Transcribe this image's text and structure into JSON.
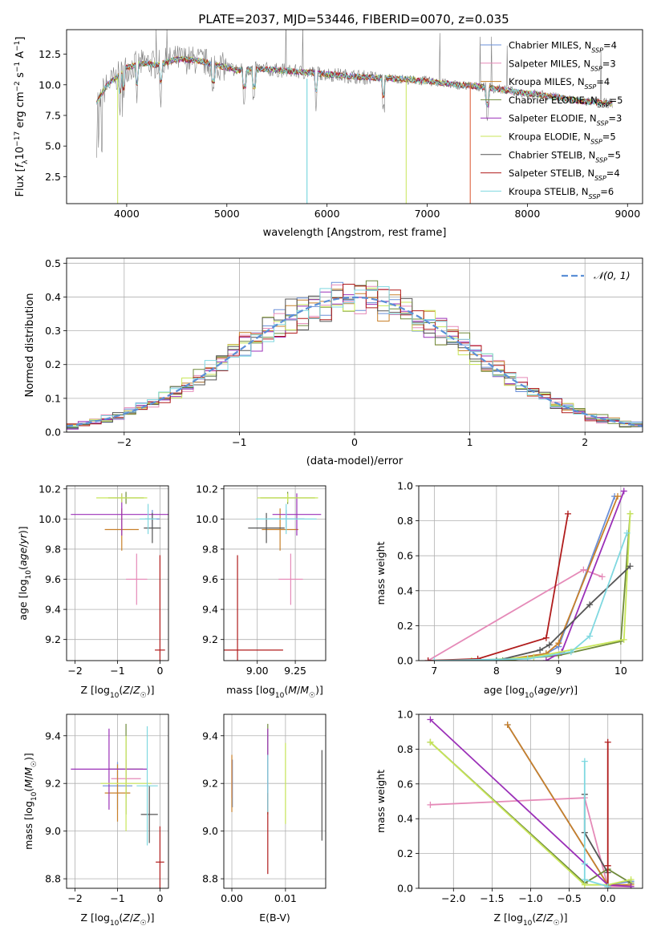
{
  "figure_title": "PLATE=2037, MJD=53446, FIBERID=0070, z=0.035",
  "colors": {
    "Chabrier MILES": "#6a8fd8",
    "Salpeter MILES": "#e58ab8",
    "Kroupa MILES": "#c8802a",
    "Chabrier ELODIE": "#6f8a3a",
    "Salpeter ELODIE": "#9b30b8",
    "Kroupa ELODIE": "#c8e65a",
    "Chabrier STELIB": "#555555",
    "Salpeter STELIB": "#b01c1c",
    "Kroupa STELIB": "#7fd8e0",
    "data": "#808080",
    "normal": "#5b8fd6"
  },
  "chart_data": [
    {
      "id": "spectrum",
      "type": "line",
      "title": "PLATE=2037, MJD=53446, FIBERID=0070, z=0.035",
      "xlabel": "wavelength [Angstrom, rest frame]",
      "ylabel": "Flux [f",
      "ylabel_parts": [
        "Flux [",
        "f",
        "λ",
        "10",
        "−17",
        " erg cm",
        "−2",
        " s",
        "−1",
        " A",
        "−1",
        "]"
      ],
      "xlim": [
        3400,
        9150
      ],
      "ylim": [
        0.3,
        14.5
      ],
      "xticks": [
        4000,
        5000,
        6000,
        7000,
        8000,
        9000
      ],
      "yticks": [
        2.5,
        5.0,
        7.5,
        10.0,
        12.5
      ],
      "ytick_labels": [
        "2.5",
        "5.0",
        "7.5",
        "10.0",
        "12.5"
      ],
      "continuum": {
        "x": [
          3700,
          3750,
          3800,
          3900,
          4000,
          4100,
          4200,
          4300,
          4500,
          4700,
          4900,
          5100,
          5300,
          5500,
          5800,
          6100,
          6400,
          6700,
          7000,
          7300,
          7600,
          7900,
          8200,
          8500,
          8800
        ],
        "y": [
          8.6,
          9.3,
          9.9,
          10.6,
          11.4,
          11.6,
          11.8,
          11.6,
          12.1,
          12.0,
          11.6,
          11.2,
          11.3,
          11.2,
          11.0,
          10.8,
          10.6,
          10.5,
          10.3,
          10.0,
          9.8,
          9.4,
          9.1,
          8.7,
          8.5
        ]
      },
      "series": [
        {
          "name": "Chabrier MILES",
          "sub": "SSP",
          "n": 4
        },
        {
          "name": "Salpeter MILES",
          "sub": "SSP",
          "n": 3
        },
        {
          "name": "Kroupa MILES",
          "sub": "SSP",
          "n": 4
        },
        {
          "name": "Chabrier ELODIE",
          "sub": "SSP",
          "n": 5
        },
        {
          "name": "Salpeter ELODIE",
          "sub": "SSP",
          "n": 3
        },
        {
          "name": "Kroupa ELODIE",
          "sub": "SSP",
          "n": 5
        },
        {
          "name": "Chabrier STELIB",
          "sub": "SSP",
          "n": 5
        },
        {
          "name": "Salpeter STELIB",
          "sub": "SSP",
          "n": 4
        },
        {
          "name": "Kroupa STELIB",
          "sub": "SSP",
          "n": 6
        }
      ],
      "legend_location": "upper-right"
    },
    {
      "id": "residuals",
      "type": "histogram",
      "xlabel": "(data-model)/error",
      "ylabel": "Normed distribution",
      "xlim": [
        -2.5,
        2.5
      ],
      "ylim": [
        0,
        0.515
      ],
      "xticks": [
        -2,
        -1,
        0,
        1,
        2
      ],
      "xtick_labels": [
        "−2",
        "−1",
        "0",
        "1",
        "2"
      ],
      "yticks": [
        0.0,
        0.1,
        0.2,
        0.3,
        0.4,
        0.5
      ],
      "ytick_labels": [
        "0.0",
        "0.1",
        "0.2",
        "0.3",
        "0.4",
        "0.5"
      ],
      "bin_width": 0.1,
      "legend": [
        "𝒩(0, 1)"
      ],
      "grid": true
    },
    {
      "id": "age-vs-Z",
      "type": "errorbar",
      "xlabel": "Z [log10(Z/Z☉)]",
      "ylabel": "age  [log10(age/yr)]",
      "xlim": [
        -2.2,
        0.2
      ],
      "ylim": [
        9.06,
        10.22
      ],
      "xticks": [
        -2,
        -1,
        0
      ],
      "xtick_labels": [
        "−2",
        "−1",
        "0"
      ],
      "yticks": [
        9.2,
        9.4,
        9.6,
        9.8,
        10.0,
        10.2
      ],
      "ytick_labels": [
        "9.2",
        "9.4",
        "9.6",
        "9.8",
        "10.0",
        "10.2"
      ],
      "points": [
        {
          "model": "Chabrier MILES",
          "x": -0.18,
          "xerr": 0.17,
          "y": 10.0,
          "yerr": 0.06
        },
        {
          "model": "Salpeter MILES",
          "x": -0.55,
          "xerr": 0.25,
          "y": 9.6,
          "yerr": 0.17
        },
        {
          "model": "Kroupa MILES",
          "x": -0.9,
          "xerr": 0.4,
          "y": 9.93,
          "yerr": 0.14
        },
        {
          "model": "Chabrier ELODIE",
          "x": -0.8,
          "xerr": 0.42,
          "y": 10.14,
          "yerr": 0.04
        },
        {
          "model": "Salpeter ELODIE",
          "x": -0.9,
          "xerr": 1.2,
          "y": 10.03,
          "yerr": 0.14
        },
        {
          "model": "Kroupa ELODIE",
          "x": -0.9,
          "xerr": 0.6,
          "y": 10.14,
          "yerr": 0.03
        },
        {
          "model": "Chabrier STELIB",
          "x": -0.18,
          "xerr": 0.2,
          "y": 9.94,
          "yerr": 0.1
        },
        {
          "model": "Salpeter STELIB",
          "x": 0.0,
          "xerr": 0.12,
          "y": 9.13,
          "yerr": 0.63
        },
        {
          "model": "Kroupa STELIB",
          "x": -0.28,
          "xerr": 0.2,
          "y": 10.0,
          "yerr": 0.1
        }
      ]
    },
    {
      "id": "age-vs-mass",
      "type": "errorbar",
      "xlabel": "mass [log10(M/M☉)]",
      "ylabel": "",
      "xlim": [
        8.78,
        9.45
      ],
      "ylim": [
        9.06,
        10.22
      ],
      "xticks": [
        9.0,
        9.25
      ],
      "xtick_labels": [
        "9.00",
        "9.25"
      ],
      "yticks": [
        9.2,
        9.4,
        9.6,
        9.8,
        10.0,
        10.2
      ],
      "ytick_labels": [
        "9.2",
        "9.4",
        "9.6",
        "9.8",
        "10.0",
        "10.2"
      ],
      "points": [
        {
          "model": "Chabrier MILES",
          "x": 9.19,
          "xerr": 0.12,
          "y": 10.0,
          "yerr": 0.06
        },
        {
          "model": "Salpeter MILES",
          "x": 9.22,
          "xerr": 0.08,
          "y": 9.6,
          "yerr": 0.17
        },
        {
          "model": "Kroupa MILES",
          "x": 9.15,
          "xerr": 0.12,
          "y": 9.93,
          "yerr": 0.14
        },
        {
          "model": "Chabrier ELODIE",
          "x": 9.2,
          "xerr": 0.18,
          "y": 10.14,
          "yerr": 0.04
        },
        {
          "model": "Salpeter ELODIE",
          "x": 9.26,
          "xerr": 0.16,
          "y": 10.03,
          "yerr": 0.14
        },
        {
          "model": "Kroupa ELODIE",
          "x": 9.2,
          "xerr": 0.2,
          "y": 10.14,
          "yerr": 0.03
        },
        {
          "model": "Chabrier STELIB",
          "x": 9.06,
          "xerr": 0.12,
          "y": 9.94,
          "yerr": 0.1
        },
        {
          "model": "Salpeter STELIB",
          "x": 8.87,
          "xerr": 0.3,
          "y": 9.13,
          "yerr": 0.63
        },
        {
          "model": "Kroupa STELIB",
          "x": 9.19,
          "xerr": 0.2,
          "y": 10.0,
          "yerr": 0.1
        }
      ]
    },
    {
      "id": "massweight-vs-age",
      "type": "line",
      "xlabel": "age  [log10(age/yr)]",
      "ylabel": "mass weight",
      "xlim": [
        6.75,
        10.35
      ],
      "ylim": [
        0,
        1.0
      ],
      "xticks": [
        7,
        8,
        9,
        10
      ],
      "xtick_labels": [
        "7",
        "8",
        "9",
        "10"
      ],
      "yticks": [
        0.0,
        0.2,
        0.4,
        0.6,
        0.8,
        1.0
      ],
      "ytick_labels": [
        "0.0",
        "0.2",
        "0.4",
        "0.6",
        "0.8",
        "1.0"
      ],
      "series": [
        {
          "name": "Chabrier MILES",
          "x": [
            8.2,
            8.8,
            9.0,
            9.9
          ],
          "y": [
            0.0,
            0.04,
            0.08,
            0.94
          ]
        },
        {
          "name": "Salpeter MILES",
          "x": [
            6.9,
            9.4,
            9.7
          ],
          "y": [
            0.0,
            0.52,
            0.48
          ]
        },
        {
          "name": "Kroupa MILES",
          "x": [
            8.0,
            8.8,
            9.0,
            9.95
          ],
          "y": [
            0.0,
            0.04,
            0.1,
            0.94
          ]
        },
        {
          "name": "Chabrier ELODIE",
          "x": [
            8.1,
            9.0,
            10.0,
            10.15
          ],
          "y": [
            0.0,
            0.03,
            0.11,
            0.84
          ]
        },
        {
          "name": "Salpeter ELODIE",
          "x": [
            8.8,
            9.05,
            10.05
          ],
          "y": [
            0.0,
            0.05,
            0.97
          ]
        },
        {
          "name": "Kroupa ELODIE",
          "x": [
            7.6,
            8.6,
            10.05,
            10.15
          ],
          "y": [
            0.0,
            0.02,
            0.12,
            0.84
          ]
        },
        {
          "name": "Chabrier STELIB",
          "x": [
            8.0,
            8.7,
            8.85,
            9.5,
            10.15
          ],
          "y": [
            0.0,
            0.06,
            0.09,
            0.32,
            0.54
          ]
        },
        {
          "name": "Salpeter STELIB",
          "x": [
            6.9,
            7.7,
            8.8,
            9.15
          ],
          "y": [
            0.0,
            0.01,
            0.13,
            0.84
          ]
        },
        {
          "name": "Kroupa STELIB",
          "x": [
            7.0,
            8.5,
            9.2,
            9.5,
            10.1
          ],
          "y": [
            0.0,
            0.01,
            0.05,
            0.14,
            0.73
          ]
        }
      ]
    },
    {
      "id": "mass-vs-Z",
      "type": "errorbar",
      "xlabel": "Z [log10(Z/Z☉)]",
      "ylabel": "mass [log10(M/M☉)]",
      "xlim": [
        -2.2,
        0.2
      ],
      "ylim": [
        8.76,
        9.49
      ],
      "xticks": [
        -2,
        -1,
        0
      ],
      "xtick_labels": [
        "−2",
        "−1",
        "0"
      ],
      "yticks": [
        8.8,
        9.0,
        9.2,
        9.4
      ],
      "ytick_labels": [
        "8.8",
        "9.0",
        "9.2",
        "9.4"
      ],
      "points": [
        {
          "model": "Chabrier MILES",
          "x": -1.0,
          "xerr": 0.35,
          "y": 9.19,
          "yerr": 0.1
        },
        {
          "model": "Salpeter MILES",
          "x": -0.8,
          "xerr": 0.35,
          "y": 9.22,
          "yerr": 0.08
        },
        {
          "model": "Kroupa MILES",
          "x": -1.0,
          "xerr": 0.3,
          "y": 9.16,
          "yerr": 0.12
        },
        {
          "model": "Chabrier ELODIE",
          "x": -0.8,
          "xerr": 0.4,
          "y": 9.26,
          "yerr": 0.19
        },
        {
          "model": "Salpeter ELODIE",
          "x": -1.2,
          "xerr": 0.9,
          "y": 9.26,
          "yerr": 0.17
        },
        {
          "model": "Kroupa ELODIE",
          "x": -0.8,
          "xerr": 0.6,
          "y": 9.2,
          "yerr": 0.2
        },
        {
          "model": "Chabrier STELIB",
          "x": -0.25,
          "xerr": 0.2,
          "y": 9.07,
          "yerr": 0.12
        },
        {
          "model": "Salpeter STELIB",
          "x": 0.0,
          "xerr": 0.1,
          "y": 8.87,
          "yerr": 0.15
        },
        {
          "model": "Kroupa STELIB",
          "x": -0.3,
          "xerr": 0.25,
          "y": 9.19,
          "yerr": 0.25
        }
      ]
    },
    {
      "id": "mass-vs-ebv",
      "type": "errorbar",
      "xlabel": "E(B-V)",
      "ylabel": "",
      "xlim": [
        -0.0015,
        0.0175
      ],
      "ylim": [
        8.76,
        9.49
      ],
      "xticks": [
        0.0,
        0.01
      ],
      "xtick_labels": [
        "0.00",
        "0.01"
      ],
      "yticks": [
        8.8,
        9.0,
        9.2,
        9.4
      ],
      "ytick_labels": [
        "8.8",
        "9.0",
        "9.2",
        "9.4"
      ],
      "points": [
        {
          "model": "Chabrier MILES",
          "x": 0.0001,
          "xerr": 0,
          "y": 9.2,
          "yerr": 0.1
        },
        {
          "model": "Salpeter MILES",
          "x": 0.0,
          "xerr": 0,
          "y": 9.22,
          "yerr": 0.08
        },
        {
          "model": "Kroupa MILES",
          "x": 0.0,
          "xerr": 0,
          "y": 9.2,
          "yerr": 0.12
        },
        {
          "model": "Chabrier ELODIE",
          "x": 0.0067,
          "xerr": 0,
          "y": 9.26,
          "yerr": 0.19
        },
        {
          "model": "Salpeter ELODIE",
          "x": 0.0067,
          "xerr": 0,
          "y": 9.26,
          "yerr": 0.17
        },
        {
          "model": "Kroupa ELODIE",
          "x": 0.01,
          "xerr": 0,
          "y": 9.2,
          "yerr": 0.17
        },
        {
          "model": "Chabrier STELIB",
          "x": 0.0168,
          "xerr": 0,
          "y": 9.15,
          "yerr": 0.19
        },
        {
          "model": "Salpeter STELIB",
          "x": 0.0067,
          "xerr": 0,
          "y": 8.99,
          "yerr": 0.17
        },
        {
          "model": "Kroupa STELIB",
          "x": 0.0067,
          "xerr": 0,
          "y": 9.2,
          "yerr": 0.12
        }
      ]
    },
    {
      "id": "massweight-vs-Z",
      "type": "line",
      "xlabel": "Z [log10(Z/Z☉)]",
      "ylabel": "mass weight",
      "xlim": [
        -2.45,
        0.45
      ],
      "ylim": [
        0,
        1.0
      ],
      "xticks": [
        -2.0,
        -1.5,
        -1.0,
        -0.5,
        0.0
      ],
      "xtick_labels": [
        "−2.0",
        "−1.5",
        "−1.0",
        "−0.5",
        "0.0"
      ],
      "yticks": [
        0.0,
        0.2,
        0.4,
        0.6,
        0.8,
        1.0
      ],
      "ytick_labels": [
        "0.0",
        "0.2",
        "0.4",
        "0.6",
        "0.8",
        "1.0"
      ],
      "series": [
        {
          "name": "Chabrier MILES",
          "x": [
            -1.3,
            0.0,
            0.3
          ],
          "y": [
            0.94,
            0.02,
            0.04
          ]
        },
        {
          "name": "Salpeter MILES",
          "x": [
            -2.3,
            -0.3,
            0.0,
            0.3
          ],
          "y": [
            0.48,
            0.52,
            0.01,
            0.01
          ]
        },
        {
          "name": "Kroupa MILES",
          "x": [
            -1.3,
            0.0,
            0.3
          ],
          "y": [
            0.94,
            0.02,
            0.02
          ]
        },
        {
          "name": "Chabrier ELODIE",
          "x": [
            -2.3,
            -0.3,
            0.0,
            0.3
          ],
          "y": [
            0.84,
            0.03,
            0.11,
            0.03
          ]
        },
        {
          "name": "Salpeter ELODIE",
          "x": [
            -2.3,
            0.0,
            0.3
          ],
          "y": [
            0.97,
            0.02,
            0.01
          ]
        },
        {
          "name": "Kroupa ELODIE",
          "x": [
            -2.3,
            -0.3,
            0.0,
            0.3
          ],
          "y": [
            0.84,
            0.02,
            0.02,
            0.05
          ]
        },
        {
          "name": "Chabrier STELIB",
          "x": [
            -0.3,
            -0.3,
            0.0,
            0.0
          ],
          "y": [
            0.54,
            0.32,
            0.09,
            0.0
          ]
        },
        {
          "name": "Salpeter STELIB",
          "x": [
            0.0,
            0.0,
            0.0
          ],
          "y": [
            0.84,
            0.13,
            0.01
          ]
        },
        {
          "name": "Kroupa STELIB",
          "x": [
            -0.3,
            -0.3,
            -0.3,
            0.0
          ],
          "y": [
            0.73,
            0.14,
            0.05,
            0.01
          ]
        }
      ]
    }
  ]
}
